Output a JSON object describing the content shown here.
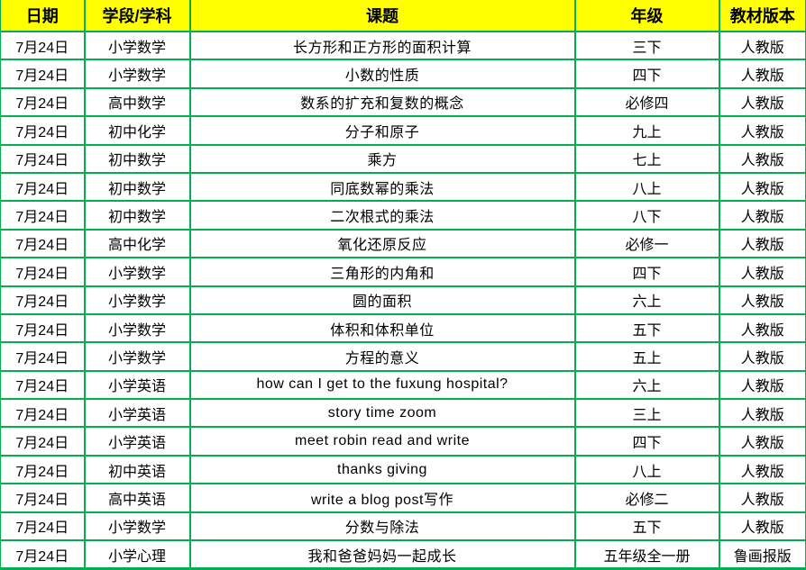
{
  "colors": {
    "header_bg": "#FFFF00",
    "border_green": "#00B050",
    "text": "#000000",
    "row_bg": "#FFFFFF"
  },
  "table": {
    "headers": [
      "日期",
      "学段/学科",
      "课题",
      "年级",
      "教材版本"
    ],
    "rows": [
      [
        "7月24日",
        "小学数学",
        "长方形和正方形的面积计算",
        "三下",
        "人教版"
      ],
      [
        "7月24日",
        "小学数学",
        "小数的性质",
        "四下",
        "人教版"
      ],
      [
        "7月24日",
        "高中数学",
        "数系的扩充和复数的概念",
        "必修四",
        "人教版"
      ],
      [
        "7月24日",
        "初中化学",
        "分子和原子",
        "九上",
        "人教版"
      ],
      [
        "7月24日",
        "初中数学",
        "乘方",
        "七上",
        "人教版"
      ],
      [
        "7月24日",
        "初中数学",
        "同底数幂的乘法",
        "八上",
        "人教版"
      ],
      [
        "7月24日",
        "初中数学",
        "二次根式的乘法",
        "八下",
        "人教版"
      ],
      [
        "7月24日",
        "高中化学",
        "氧化还原反应",
        "必修一",
        "人教版"
      ],
      [
        "7月24日",
        "小学数学",
        "三角形的内角和",
        "四下",
        "人教版"
      ],
      [
        "7月24日",
        "小学数学",
        "圆的面积",
        "六上",
        "人教版"
      ],
      [
        "7月24日",
        "小学数学",
        "体积和体积单位",
        "五下",
        "人教版"
      ],
      [
        "7月24日",
        "小学数学",
        "方程的意义",
        "五上",
        "人教版"
      ],
      [
        "7月24日",
        "小学英语",
        "how can I get to the fuxung hospital?",
        "六上",
        "人教版"
      ],
      [
        "7月24日",
        "小学英语",
        "story time zoom",
        "三上",
        "人教版"
      ],
      [
        "7月24日",
        "小学英语",
        "meet robin read and write",
        "四下",
        "人教版"
      ],
      [
        "7月24日",
        "初中英语",
        "thanks giving",
        "八上",
        "人教版"
      ],
      [
        "7月24日",
        "高中英语",
        "write a blog post写作",
        "必修二",
        "人教版"
      ],
      [
        "7月24日",
        "小学数学",
        "分数与除法",
        "五下",
        "人教版"
      ],
      [
        "7月24日",
        "小学心理",
        "我和爸爸妈妈一起成长",
        "五年级全一册",
        "鲁画报版"
      ]
    ]
  }
}
